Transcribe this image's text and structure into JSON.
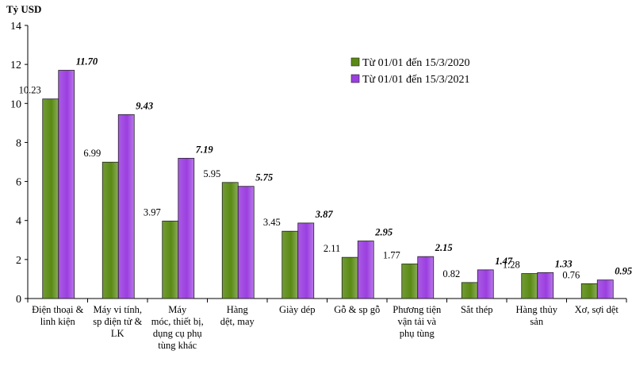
{
  "chart_data": {
    "type": "bar",
    "ylabel": "Tỷ USD",
    "ylim": [
      0,
      14
    ],
    "yticks": [
      0,
      2,
      4,
      6,
      8,
      10,
      12,
      14
    ],
    "grid": false,
    "legend_position": "top-right",
    "categories": [
      [
        "Điện thoại &",
        "linh kiện"
      ],
      [
        "Máy vi tính,",
        "sp điện tử &",
        "LK"
      ],
      [
        "Máy",
        "móc, thiết bị,",
        "dụng cụ phụ",
        "tùng khác"
      ],
      [
        "Hàng",
        "dệt, may"
      ],
      [
        "Giày dép"
      ],
      [
        "Gỗ & sp gỗ"
      ],
      [
        "Phương tiện",
        "vận tải và",
        "phụ tùng"
      ],
      [
        "Sắt thép"
      ],
      [
        "Hàng thủy",
        "sản"
      ],
      [
        "Xơ, sợi dệt"
      ]
    ],
    "series": [
      {
        "name": "Từ 01/01 đến 15/3/2020",
        "color": "#5a8a14",
        "values": [
          10.23,
          6.99,
          3.97,
          5.95,
          3.45,
          2.11,
          1.77,
          0.82,
          1.28,
          0.76
        ],
        "labels": [
          "10.23",
          "6.99",
          "3.97",
          "5.95",
          "3.45",
          "2.11",
          "1.77",
          "0.82",
          "1.28",
          "0.76"
        ]
      },
      {
        "name": "Từ 01/01 đến 15/3/2021",
        "color": "#9b3fe0",
        "values": [
          11.7,
          9.43,
          7.19,
          5.75,
          3.87,
          2.95,
          2.15,
          1.47,
          1.33,
          0.95
        ],
        "labels": [
          "11.70",
          "9.43",
          "7.19",
          "5.75",
          "3.87",
          "2.95",
          "2.15",
          "1.47",
          "1.33",
          "0.95"
        ]
      }
    ]
  }
}
